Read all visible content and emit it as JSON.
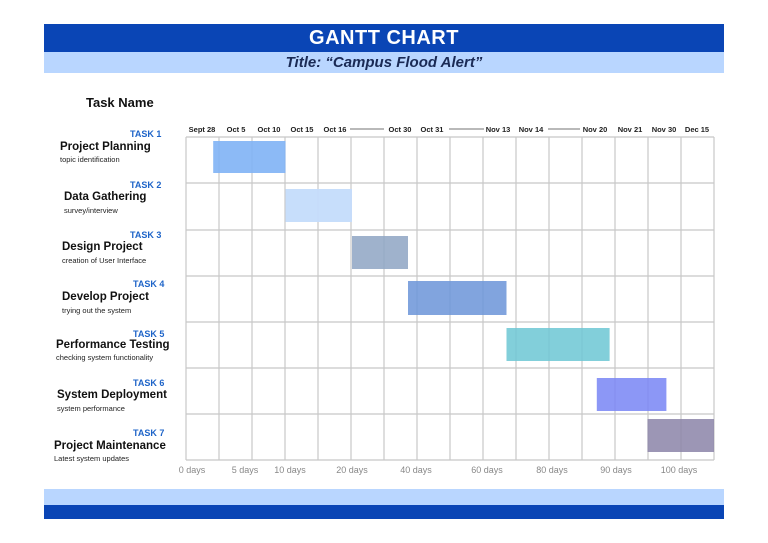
{
  "header": {
    "title": "GANTT CHART",
    "subtitle": "Title: “Campus Flood Alert”"
  },
  "task_name_heading": "Task Name",
  "tasks": [
    {
      "num": "TASK 1",
      "title": "Project Planning",
      "sub": "topic identification"
    },
    {
      "num": "TASK 2",
      "title": "Data Gathering",
      "sub": "survey/interview"
    },
    {
      "num": "TASK 3",
      "title": "Design Project",
      "sub": "creation of User Interface"
    },
    {
      "num": "TASK 4",
      "title": "Develop Project",
      "sub": "trying out the system"
    },
    {
      "num": "TASK 5",
      "title": "Performance Testing",
      "sub": "checking system functionality"
    },
    {
      "num": "TASK 6",
      "title": "System Deployment",
      "sub": "system performance"
    },
    {
      "num": "TASK 7",
      "title": "Project Maintenance",
      "sub": "Latest system updates"
    }
  ],
  "chart_data": {
    "type": "bar",
    "date_labels": [
      "Sept 28",
      "Oct 5",
      "Oct 10",
      "Oct 15",
      "Oct 16",
      "Oct 30",
      "Oct 31",
      "Nov 13",
      "Nov 14",
      "Nov 20",
      "Nov 21",
      "Nov 30",
      "Dec 15"
    ],
    "day_ticks": [
      0,
      5,
      10,
      20,
      40,
      60,
      80,
      90,
      100
    ],
    "day_tick_labels": [
      "0 days",
      "5 days",
      "10 days",
      "20 days",
      "40 days",
      "60 days",
      "80 days",
      "90 days",
      "100 days"
    ],
    "bars": [
      {
        "task": "TASK 1",
        "start_day": 2,
        "end_day": 9.5,
        "color": "#7fb2f5",
        "opacity": 0.9
      },
      {
        "task": "TASK 2",
        "start_day": 9.5,
        "end_day": 20,
        "color": "#c4dcfb",
        "opacity": 0.95
      },
      {
        "task": "TASK 3",
        "start_day": 20,
        "end_day": 37.5,
        "color": "#8ea4c3",
        "opacity": 0.85
      },
      {
        "task": "TASK 4",
        "start_day": 37.5,
        "end_day": 66,
        "color": "#6b94d8",
        "opacity": 0.85
      },
      {
        "task": "TASK 5",
        "start_day": 66,
        "end_day": 89,
        "color": "#6cc7d3",
        "opacity": 0.85
      },
      {
        "task": "TASK 6",
        "start_day": 87,
        "end_day": 98,
        "color": "#7885f5",
        "opacity": 0.85
      },
      {
        "task": "TASK 7",
        "start_day": 95,
        "end_day": 110,
        "color": "#8b84a8",
        "opacity": 0.85
      }
    ],
    "colors": {
      "grid": "#c8c8c8"
    }
  }
}
